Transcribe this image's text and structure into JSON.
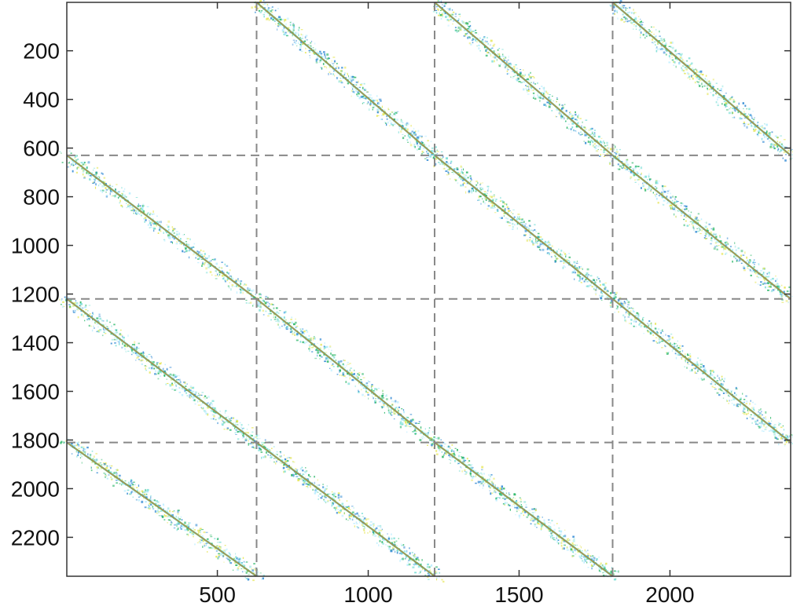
{
  "chart_data": {
    "type": "heatmap",
    "title": "",
    "xlabel": "",
    "ylabel": "",
    "xlim": [
      1,
      2400
    ],
    "ylim": [
      2360,
      1
    ],
    "y_inverted": true,
    "grid": false,
    "xticks": [
      500,
      1000,
      1500,
      2000
    ],
    "xtick_labels": [
      "500",
      "1000",
      "1500",
      "2000"
    ],
    "yticks": [
      200,
      400,
      600,
      800,
      1000,
      1200,
      1400,
      1600,
      1800,
      2000,
      2200
    ],
    "ytick_labels": [
      "200",
      "400",
      "600",
      "800",
      "1000",
      "1200",
      "1400",
      "1600",
      "1800",
      "2000",
      "2200"
    ],
    "block_boundaries": {
      "x": [
        630,
        1220,
        1810
      ],
      "y": [
        630,
        1220,
        1810
      ],
      "line_style": "dashed",
      "color": "#888888"
    },
    "diagonal_bands": [
      {
        "x_start": 630,
        "x_end": 1220,
        "y_start": 1,
        "y_end": 630
      },
      {
        "x_start": 1220,
        "x_end": 1810,
        "y_start": 1,
        "y_end": 630
      },
      {
        "x_start": 1810,
        "x_end": 2400,
        "y_start": 1,
        "y_end": 630
      },
      {
        "x_start": 1,
        "x_end": 630,
        "y_start": 630,
        "y_end": 1220
      },
      {
        "x_start": 1220,
        "x_end": 1810,
        "y_start": 630,
        "y_end": 1220
      },
      {
        "x_start": 1810,
        "x_end": 2400,
        "y_start": 630,
        "y_end": 1220
      },
      {
        "x_start": 1,
        "x_end": 630,
        "y_start": 1220,
        "y_end": 1810
      },
      {
        "x_start": 630,
        "x_end": 1220,
        "y_start": 1220,
        "y_end": 1810
      },
      {
        "x_start": 1810,
        "x_end": 2400,
        "y_start": 1220,
        "y_end": 1810
      },
      {
        "x_start": 1,
        "x_end": 630,
        "y_start": 1810,
        "y_end": 2360
      },
      {
        "x_start": 630,
        "x_end": 1220,
        "y_start": 1810,
        "y_end": 2360
      },
      {
        "x_start": 1220,
        "x_end": 1810,
        "y_start": 1810,
        "y_end": 2360
      }
    ],
    "colors": {
      "band_core": "#e8743b",
      "band_mid": "#2fb86a",
      "band_scatter_1": "#3b8fd6",
      "band_scatter_2": "#7fe0d8",
      "band_scatter_3": "#b6ecff",
      "band_scatter_4": "#e6e65a",
      "axes": "#333333"
    }
  }
}
